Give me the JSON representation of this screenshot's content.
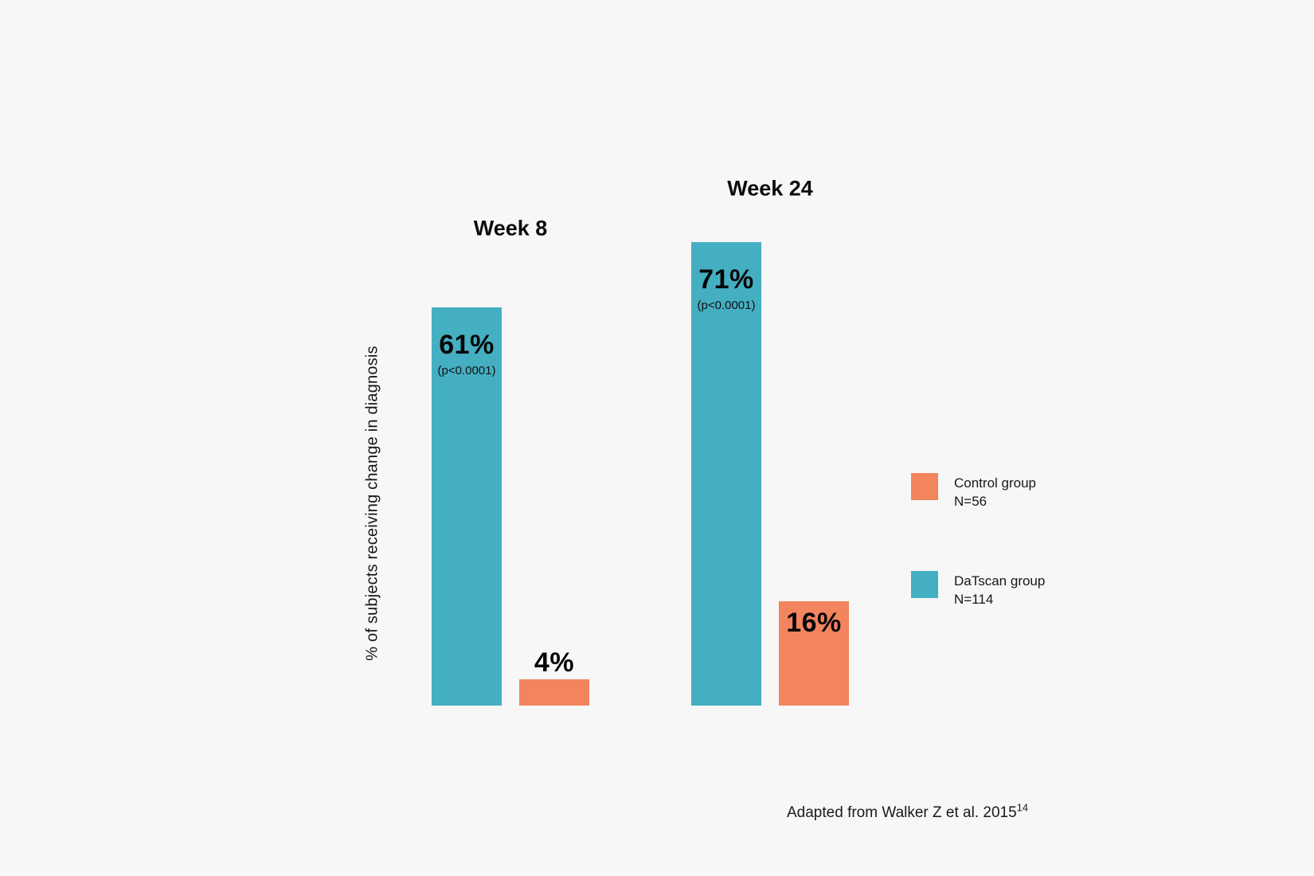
{
  "page": {
    "background_color": "#f7f7f7"
  },
  "chart_data": {
    "type": "bar",
    "categories": [
      "Week 8",
      "Week 24"
    ],
    "series": [
      {
        "name": "DaTscan group",
        "n_label": "N=114",
        "color": "#45AFC2",
        "values": [
          61,
          71
        ],
        "value_labels": [
          "61%",
          "71%"
        ],
        "annotations": [
          "(p<0.0001)",
          "(p<0.0001)"
        ]
      },
      {
        "name": "Control group",
        "n_label": "N=56",
        "color": "#F2845E",
        "values": [
          4,
          16
        ],
        "value_labels": [
          "4%",
          "16%"
        ],
        "annotations": [
          "",
          ""
        ]
      }
    ],
    "ylabel": "% of subjects receiving change in diagnosis",
    "xlabel": "",
    "ylim": [
      0,
      100
    ],
    "grid": false,
    "axes_visible": false,
    "legend_position": "right"
  },
  "legend": {
    "items": [
      {
        "label": "Control group",
        "n": "N=56",
        "color": "#F2845E"
      },
      {
        "label": "DaTscan group",
        "n": "N=114",
        "color": "#45AFC2"
      }
    ]
  },
  "footer": {
    "citation": "Adapted from Walker Z et al. 2015",
    "reference": "14"
  }
}
